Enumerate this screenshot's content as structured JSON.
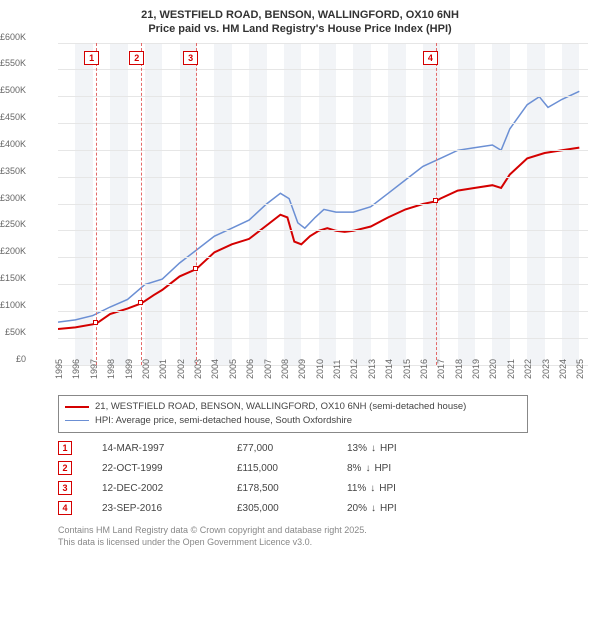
{
  "title_line1": "21, WESTFIELD ROAD, BENSON, WALLINGFORD, OX10 6NH",
  "title_line2": "Price paid vs. HM Land Registry's House Price Index (HPI)",
  "chart": {
    "type": "line",
    "x_domain": [
      1995,
      2025.5
    ],
    "y_domain": [
      0,
      600000
    ],
    "y_ticks": [
      0,
      50000,
      100000,
      150000,
      200000,
      250000,
      300000,
      350000,
      400000,
      450000,
      500000,
      550000,
      600000
    ],
    "y_tick_labels": [
      "£0",
      "£50K",
      "£100K",
      "£150K",
      "£200K",
      "£250K",
      "£300K",
      "£350K",
      "£400K",
      "£450K",
      "£500K",
      "£550K",
      "£600K"
    ],
    "x_ticks": [
      1995,
      1996,
      1997,
      1998,
      1999,
      2000,
      2001,
      2002,
      2003,
      2004,
      2005,
      2006,
      2007,
      2008,
      2009,
      2010,
      2011,
      2012,
      2013,
      2014,
      2015,
      2016,
      2017,
      2018,
      2019,
      2020,
      2021,
      2022,
      2023,
      2024,
      2025
    ],
    "grid_color": "#e6e6e6",
    "alt_band_color": "#f2f4f7",
    "event_dash_color": "#e46a6a",
    "background_color": "#ffffff",
    "series": [
      {
        "name": "price_paid",
        "color": "#d40000",
        "width": 2,
        "label": "21, WESTFIELD ROAD, BENSON, WALLINGFORD, OX10 6NH (semi-detached house)",
        "points": [
          [
            1995,
            67000
          ],
          [
            1996,
            70000
          ],
          [
            1997.2,
            77000
          ],
          [
            1998,
            95000
          ],
          [
            1999,
            105000
          ],
          [
            1999.8,
            115000
          ],
          [
            2000.5,
            130000
          ],
          [
            2001,
            140000
          ],
          [
            2002,
            165000
          ],
          [
            2002.95,
            178500
          ],
          [
            2003.5,
            195000
          ],
          [
            2004,
            210000
          ],
          [
            2005,
            225000
          ],
          [
            2006,
            235000
          ],
          [
            2007,
            260000
          ],
          [
            2007.8,
            280000
          ],
          [
            2008.2,
            275000
          ],
          [
            2008.6,
            230000
          ],
          [
            2009,
            225000
          ],
          [
            2009.5,
            240000
          ],
          [
            2010,
            250000
          ],
          [
            2010.5,
            255000
          ],
          [
            2011,
            250000
          ],
          [
            2011.5,
            248000
          ],
          [
            2012,
            250000
          ],
          [
            2013,
            258000
          ],
          [
            2014,
            275000
          ],
          [
            2015,
            290000
          ],
          [
            2016,
            300000
          ],
          [
            2016.73,
            305000
          ],
          [
            2017,
            310000
          ],
          [
            2018,
            325000
          ],
          [
            2019,
            330000
          ],
          [
            2020,
            335000
          ],
          [
            2020.5,
            330000
          ],
          [
            2021,
            355000
          ],
          [
            2022,
            385000
          ],
          [
            2023,
            395000
          ],
          [
            2024,
            400000
          ],
          [
            2025,
            405000
          ]
        ]
      },
      {
        "name": "hpi",
        "color": "#6b8fd4",
        "width": 1.5,
        "label": "HPI: Average price, semi-detached house, South Oxfordshire",
        "points": [
          [
            1995,
            80000
          ],
          [
            1996,
            84000
          ],
          [
            1997,
            92000
          ],
          [
            1998,
            108000
          ],
          [
            1999,
            122000
          ],
          [
            2000,
            150000
          ],
          [
            2001,
            160000
          ],
          [
            2002,
            190000
          ],
          [
            2003,
            215000
          ],
          [
            2004,
            240000
          ],
          [
            2005,
            255000
          ],
          [
            2006,
            270000
          ],
          [
            2007,
            300000
          ],
          [
            2007.8,
            320000
          ],
          [
            2008.3,
            310000
          ],
          [
            2008.8,
            265000
          ],
          [
            2009.2,
            255000
          ],
          [
            2009.8,
            275000
          ],
          [
            2010.3,
            290000
          ],
          [
            2011,
            285000
          ],
          [
            2012,
            285000
          ],
          [
            2013,
            295000
          ],
          [
            2014,
            320000
          ],
          [
            2015,
            345000
          ],
          [
            2016,
            370000
          ],
          [
            2017,
            385000
          ],
          [
            2018,
            400000
          ],
          [
            2019,
            405000
          ],
          [
            2020,
            410000
          ],
          [
            2020.5,
            400000
          ],
          [
            2021,
            440000
          ],
          [
            2022,
            485000
          ],
          [
            2022.7,
            500000
          ],
          [
            2023.2,
            480000
          ],
          [
            2024,
            495000
          ],
          [
            2025,
            510000
          ]
        ]
      }
    ],
    "event_markers": [
      {
        "n": "1",
        "x": 1997.2,
        "y": 77000,
        "label_x": 1996.5,
        "color": "#d40000"
      },
      {
        "n": "2",
        "x": 1999.8,
        "y": 115000,
        "label_x": 1999.1,
        "color": "#d40000"
      },
      {
        "n": "3",
        "x": 2002.95,
        "y": 178500,
        "label_x": 2002.2,
        "color": "#d40000"
      },
      {
        "n": "4",
        "x": 2016.73,
        "y": 305000,
        "label_x": 2016.0,
        "color": "#d40000"
      }
    ]
  },
  "legend": {
    "series1_label": "21, WESTFIELD ROAD, BENSON, WALLINGFORD, OX10 6NH (semi-detached house)",
    "series1_color": "#d40000",
    "series2_label": "HPI: Average price, semi-detached house, South Oxfordshire",
    "series2_color": "#6b8fd4"
  },
  "events_table": [
    {
      "n": "1",
      "color": "#d40000",
      "date": "14-MAR-1997",
      "price": "£77,000",
      "delta": "13%",
      "delta_dir": "↓",
      "delta_suffix": "HPI"
    },
    {
      "n": "2",
      "color": "#d40000",
      "date": "22-OCT-1999",
      "price": "£115,000",
      "delta": "8%",
      "delta_dir": "↓",
      "delta_suffix": "HPI"
    },
    {
      "n": "3",
      "color": "#d40000",
      "date": "12-DEC-2002",
      "price": "£178,500",
      "delta": "11%",
      "delta_dir": "↓",
      "delta_suffix": "HPI"
    },
    {
      "n": "4",
      "color": "#d40000",
      "date": "23-SEP-2016",
      "price": "£305,000",
      "delta": "20%",
      "delta_dir": "↓",
      "delta_suffix": "HPI"
    }
  ],
  "footnote_line1": "Contains HM Land Registry data © Crown copyright and database right 2025.",
  "footnote_line2": "This data is licensed under the Open Government Licence v3.0."
}
